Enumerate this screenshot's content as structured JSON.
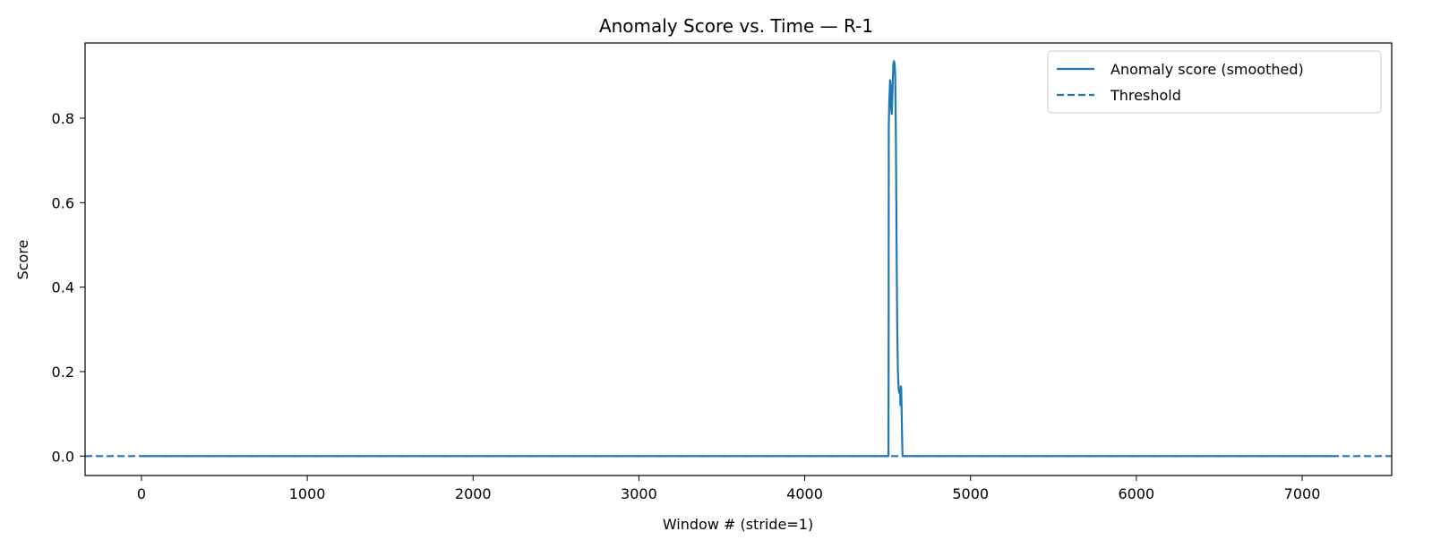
{
  "chart_data": {
    "type": "line",
    "title": "Anomaly Score vs. Time — R-1",
    "xlabel": "Window # (stride=1)",
    "ylabel": "Score",
    "xlim": [
      -340,
      7540
    ],
    "ylim": [
      -0.046,
      0.978
    ],
    "xticks": [
      0,
      1000,
      2000,
      3000,
      4000,
      5000,
      6000,
      7000
    ],
    "xtick_labels": [
      "0",
      "1000",
      "2000",
      "3000",
      "4000",
      "5000",
      "6000",
      "7000"
    ],
    "yticks": [
      0.0,
      0.2,
      0.4,
      0.6,
      0.8
    ],
    "ytick_labels": [
      "0.0",
      "0.2",
      "0.4",
      "0.6",
      "0.8"
    ],
    "grid": false,
    "legend_position": "top-right",
    "color": "#1f77b4",
    "series": [
      {
        "name": "Anomaly score (smoothed)",
        "style": "solid",
        "x": [
          0,
          4505,
          4506,
          4507,
          4510,
          4515,
          4518,
          4522,
          4525,
          4528,
          4532,
          4535,
          4538,
          4542,
          4546,
          4550,
          4554,
          4558,
          4562,
          4566,
          4570,
          4573,
          4575,
          4577,
          4579,
          4580,
          4582,
          4584,
          4586,
          4588,
          4590,
          4592,
          4594,
          4596,
          4598,
          7200
        ],
        "y": [
          0.0,
          0.0,
          0.3,
          0.78,
          0.84,
          0.89,
          0.88,
          0.82,
          0.81,
          0.84,
          0.9,
          0.93,
          0.935,
          0.93,
          0.9,
          0.75,
          0.5,
          0.3,
          0.2,
          0.16,
          0.15,
          0.16,
          0.155,
          0.12,
          0.15,
          0.165,
          0.16,
          0.12,
          0.07,
          0.03,
          0.0,
          0.0,
          0.0,
          0.0,
          0.0,
          0.0
        ]
      },
      {
        "name": "Threshold",
        "style": "dashed",
        "value": 0.0
      }
    ]
  }
}
